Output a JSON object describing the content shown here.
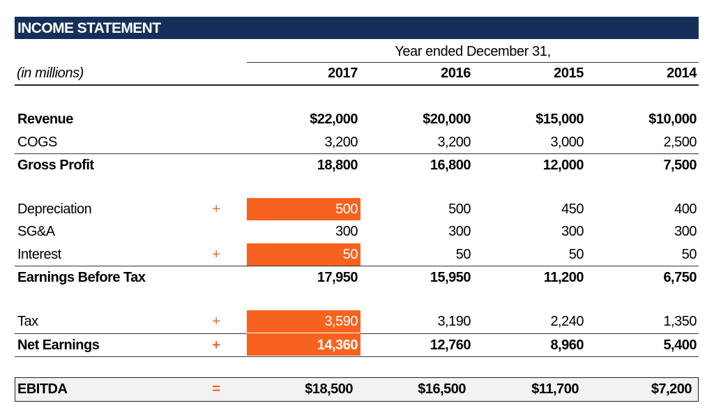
{
  "title": "INCOME STATEMENT",
  "period_label": "Year ended December 31,",
  "units_label": "(in millions)",
  "years": [
    "2017",
    "2016",
    "2015",
    "2014"
  ],
  "colors": {
    "header_bg": "#14305a",
    "highlight": "#f7621e",
    "operator": "#f26522",
    "total_bg": "#f2f2f2"
  },
  "rows": [
    {
      "label": "Revenue",
      "op": "",
      "values": [
        "$22,000",
        "$20,000",
        "$15,000",
        "$10,000"
      ],
      "bold": true,
      "highlight": false
    },
    {
      "label": "COGS",
      "op": "",
      "values": [
        "3,200",
        "3,200",
        "3,000",
        "2,500"
      ],
      "bold": false,
      "highlight": false
    },
    {
      "label": "Gross Profit",
      "op": "",
      "values": [
        "18,800",
        "16,800",
        "12,000",
        "7,500"
      ],
      "bold": true,
      "highlight": false
    },
    {
      "label": "Depreciation",
      "op": "+",
      "values": [
        "500",
        "500",
        "450",
        "400"
      ],
      "bold": false,
      "highlight": true
    },
    {
      "label": "SG&A",
      "op": "",
      "values": [
        "300",
        "300",
        "300",
        "300"
      ],
      "bold": false,
      "highlight": false
    },
    {
      "label": "Interest",
      "op": "+",
      "values": [
        "50",
        "50",
        "50",
        "50"
      ],
      "bold": false,
      "highlight": true
    },
    {
      "label": "Earnings Before Tax",
      "op": "",
      "values": [
        "17,950",
        "15,950",
        "11,200",
        "6,750"
      ],
      "bold": true,
      "highlight": false
    },
    {
      "label": "Tax",
      "op": "+",
      "values": [
        "3,590",
        "3,190",
        "2,240",
        "1,350"
      ],
      "bold": false,
      "highlight": true
    },
    {
      "label": "Net Earnings",
      "op": "+",
      "values": [
        "14,360",
        "12,760",
        "8,960",
        "5,400"
      ],
      "bold": true,
      "highlight": true
    }
  ],
  "ebitda": {
    "label": "EBITDA",
    "op": "=",
    "values": [
      "$18,500",
      "$16,500",
      "$11,700",
      "$7,200"
    ]
  }
}
